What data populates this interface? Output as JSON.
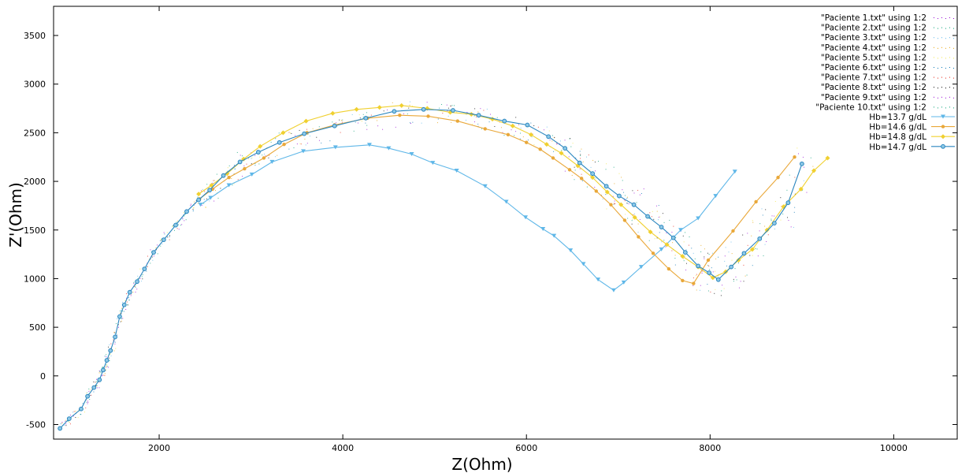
{
  "chart_data": {
    "type": "line",
    "xlabel": "Z(Ohm)",
    "ylabel": "Z'(Ohm)",
    "xlim": [
      850,
      10700
    ],
    "ylim": [
      -650,
      3800
    ],
    "x_ticks": [
      2000,
      4000,
      6000,
      8000,
      10000
    ],
    "y_ticks": [
      -500,
      0,
      500,
      1000,
      1500,
      2000,
      2500,
      3000,
      3500
    ],
    "grid": false,
    "legend_position": "top-right",
    "scatter_legend": [
      "\"Paciente 1.txt\" using 1:2",
      "\"Paciente 2.txt\" using 1:2",
      "\"Paciente 3.txt\" using 1:2",
      "\"Paciente 4.txt\" using 1:2",
      "\"Paciente 5.txt\" using 1:2",
      "\"Paciente 6.txt\" using 1:2",
      "\"Paciente 7.txt\" using 1:2",
      "\"Paciente 8.txt\" using 1:2",
      "\"Paciente 9.txt\" using 1:2",
      "\"Paciente 10.txt\" using 1:2"
    ],
    "scatter_colors": [
      "#9400d3",
      "#009e73",
      "#56b4e9",
      "#e69f00",
      "#f0e442",
      "#0072b2",
      "#e51e10",
      "#000000",
      "#9400d3",
      "#009e73"
    ],
    "series": [
      {
        "name": "Hb=13.7 g/dL",
        "color": "#5fb7e8",
        "marker": "triangle-down",
        "x": [
          2450,
          2560,
          2760,
          3010,
          3230,
          3570,
          3920,
          4290,
          4500,
          4750,
          4980,
          5240,
          5550,
          5780,
          5990,
          6180,
          6300,
          6480,
          6620,
          6780,
          6950,
          7060,
          7250,
          7470,
          7680,
          7870,
          8060,
          8270
        ],
        "y": [
          1760,
          1830,
          1960,
          2070,
          2200,
          2310,
          2350,
          2375,
          2340,
          2280,
          2190,
          2110,
          1950,
          1790,
          1630,
          1510,
          1440,
          1290,
          1150,
          990,
          880,
          960,
          1120,
          1300,
          1500,
          1620,
          1850,
          2100
        ]
      },
      {
        "name": "Hb=14.6 g/dL",
        "color": "#e9a83a",
        "marker": "circle",
        "x": [
          2440,
          2580,
          2760,
          2930,
          3140,
          3360,
          3610,
          3910,
          4270,
          4620,
          4930,
          5250,
          5550,
          5800,
          6000,
          6150,
          6290,
          6470,
          6600,
          6760,
          6920,
          7070,
          7220,
          7380,
          7550,
          7700,
          7820,
          7980,
          8250,
          8500,
          8740,
          8920
        ],
        "y": [
          1820,
          1920,
          2040,
          2130,
          2240,
          2380,
          2500,
          2580,
          2650,
          2680,
          2670,
          2620,
          2540,
          2480,
          2400,
          2330,
          2240,
          2120,
          2030,
          1900,
          1760,
          1600,
          1430,
          1260,
          1100,
          980,
          950,
          1190,
          1490,
          1790,
          2040,
          2250
        ]
      },
      {
        "name": "Hb=14.8 g/dL",
        "color": "#f0d030",
        "marker": "diamond",
        "x": [
          2430,
          2570,
          2740,
          2920,
          3100,
          3350,
          3600,
          3890,
          4150,
          4400,
          4640,
          4920,
          5170,
          5400,
          5630,
          5850,
          6050,
          6220,
          6380,
          6560,
          6720,
          6880,
          7030,
          7180,
          7350,
          7530,
          7700,
          7870,
          8030,
          8170,
          8310,
          8460,
          8620,
          8800,
          8990,
          9130,
          9280
        ],
        "y": [
          1870,
          1960,
          2080,
          2230,
          2360,
          2500,
          2620,
          2700,
          2740,
          2760,
          2780,
          2750,
          2710,
          2690,
          2640,
          2570,
          2480,
          2380,
          2290,
          2160,
          2040,
          1890,
          1760,
          1630,
          1480,
          1350,
          1230,
          1120,
          1010,
          1070,
          1190,
          1300,
          1500,
          1740,
          1920,
          2110,
          2240
        ]
      },
      {
        "name": "Hb=14.7 g/dL",
        "color": "#2a86bf",
        "marker": "circle-open",
        "x": [
          920,
          1020,
          1150,
          1220,
          1290,
          1350,
          1390,
          1430,
          1470,
          1520,
          1570,
          1620,
          1680,
          1760,
          1840,
          1940,
          2050,
          2180,
          2300,
          2430,
          2550,
          2700,
          2880,
          3080,
          3310,
          3580,
          3910,
          4250,
          4560,
          4880,
          5200,
          5480,
          5760,
          6010,
          6240,
          6420,
          6580,
          6720,
          6870,
          7010,
          7170,
          7320,
          7470,
          7600,
          7730,
          7870,
          7990,
          8090,
          8230,
          8370,
          8540,
          8700,
          8850,
          9000
        ],
        "y": [
          -540,
          -440,
          -340,
          -210,
          -120,
          -40,
          60,
          160,
          260,
          400,
          610,
          730,
          860,
          970,
          1100,
          1270,
          1400,
          1550,
          1690,
          1810,
          1910,
          2060,
          2200,
          2300,
          2400,
          2490,
          2570,
          2650,
          2720,
          2740,
          2730,
          2680,
          2620,
          2580,
          2460,
          2340,
          2190,
          2080,
          1950,
          1850,
          1760,
          1640,
          1530,
          1420,
          1270,
          1130,
          1060,
          990,
          1120,
          1260,
          1410,
          1570,
          1780,
          2180
        ]
      }
    ]
  }
}
